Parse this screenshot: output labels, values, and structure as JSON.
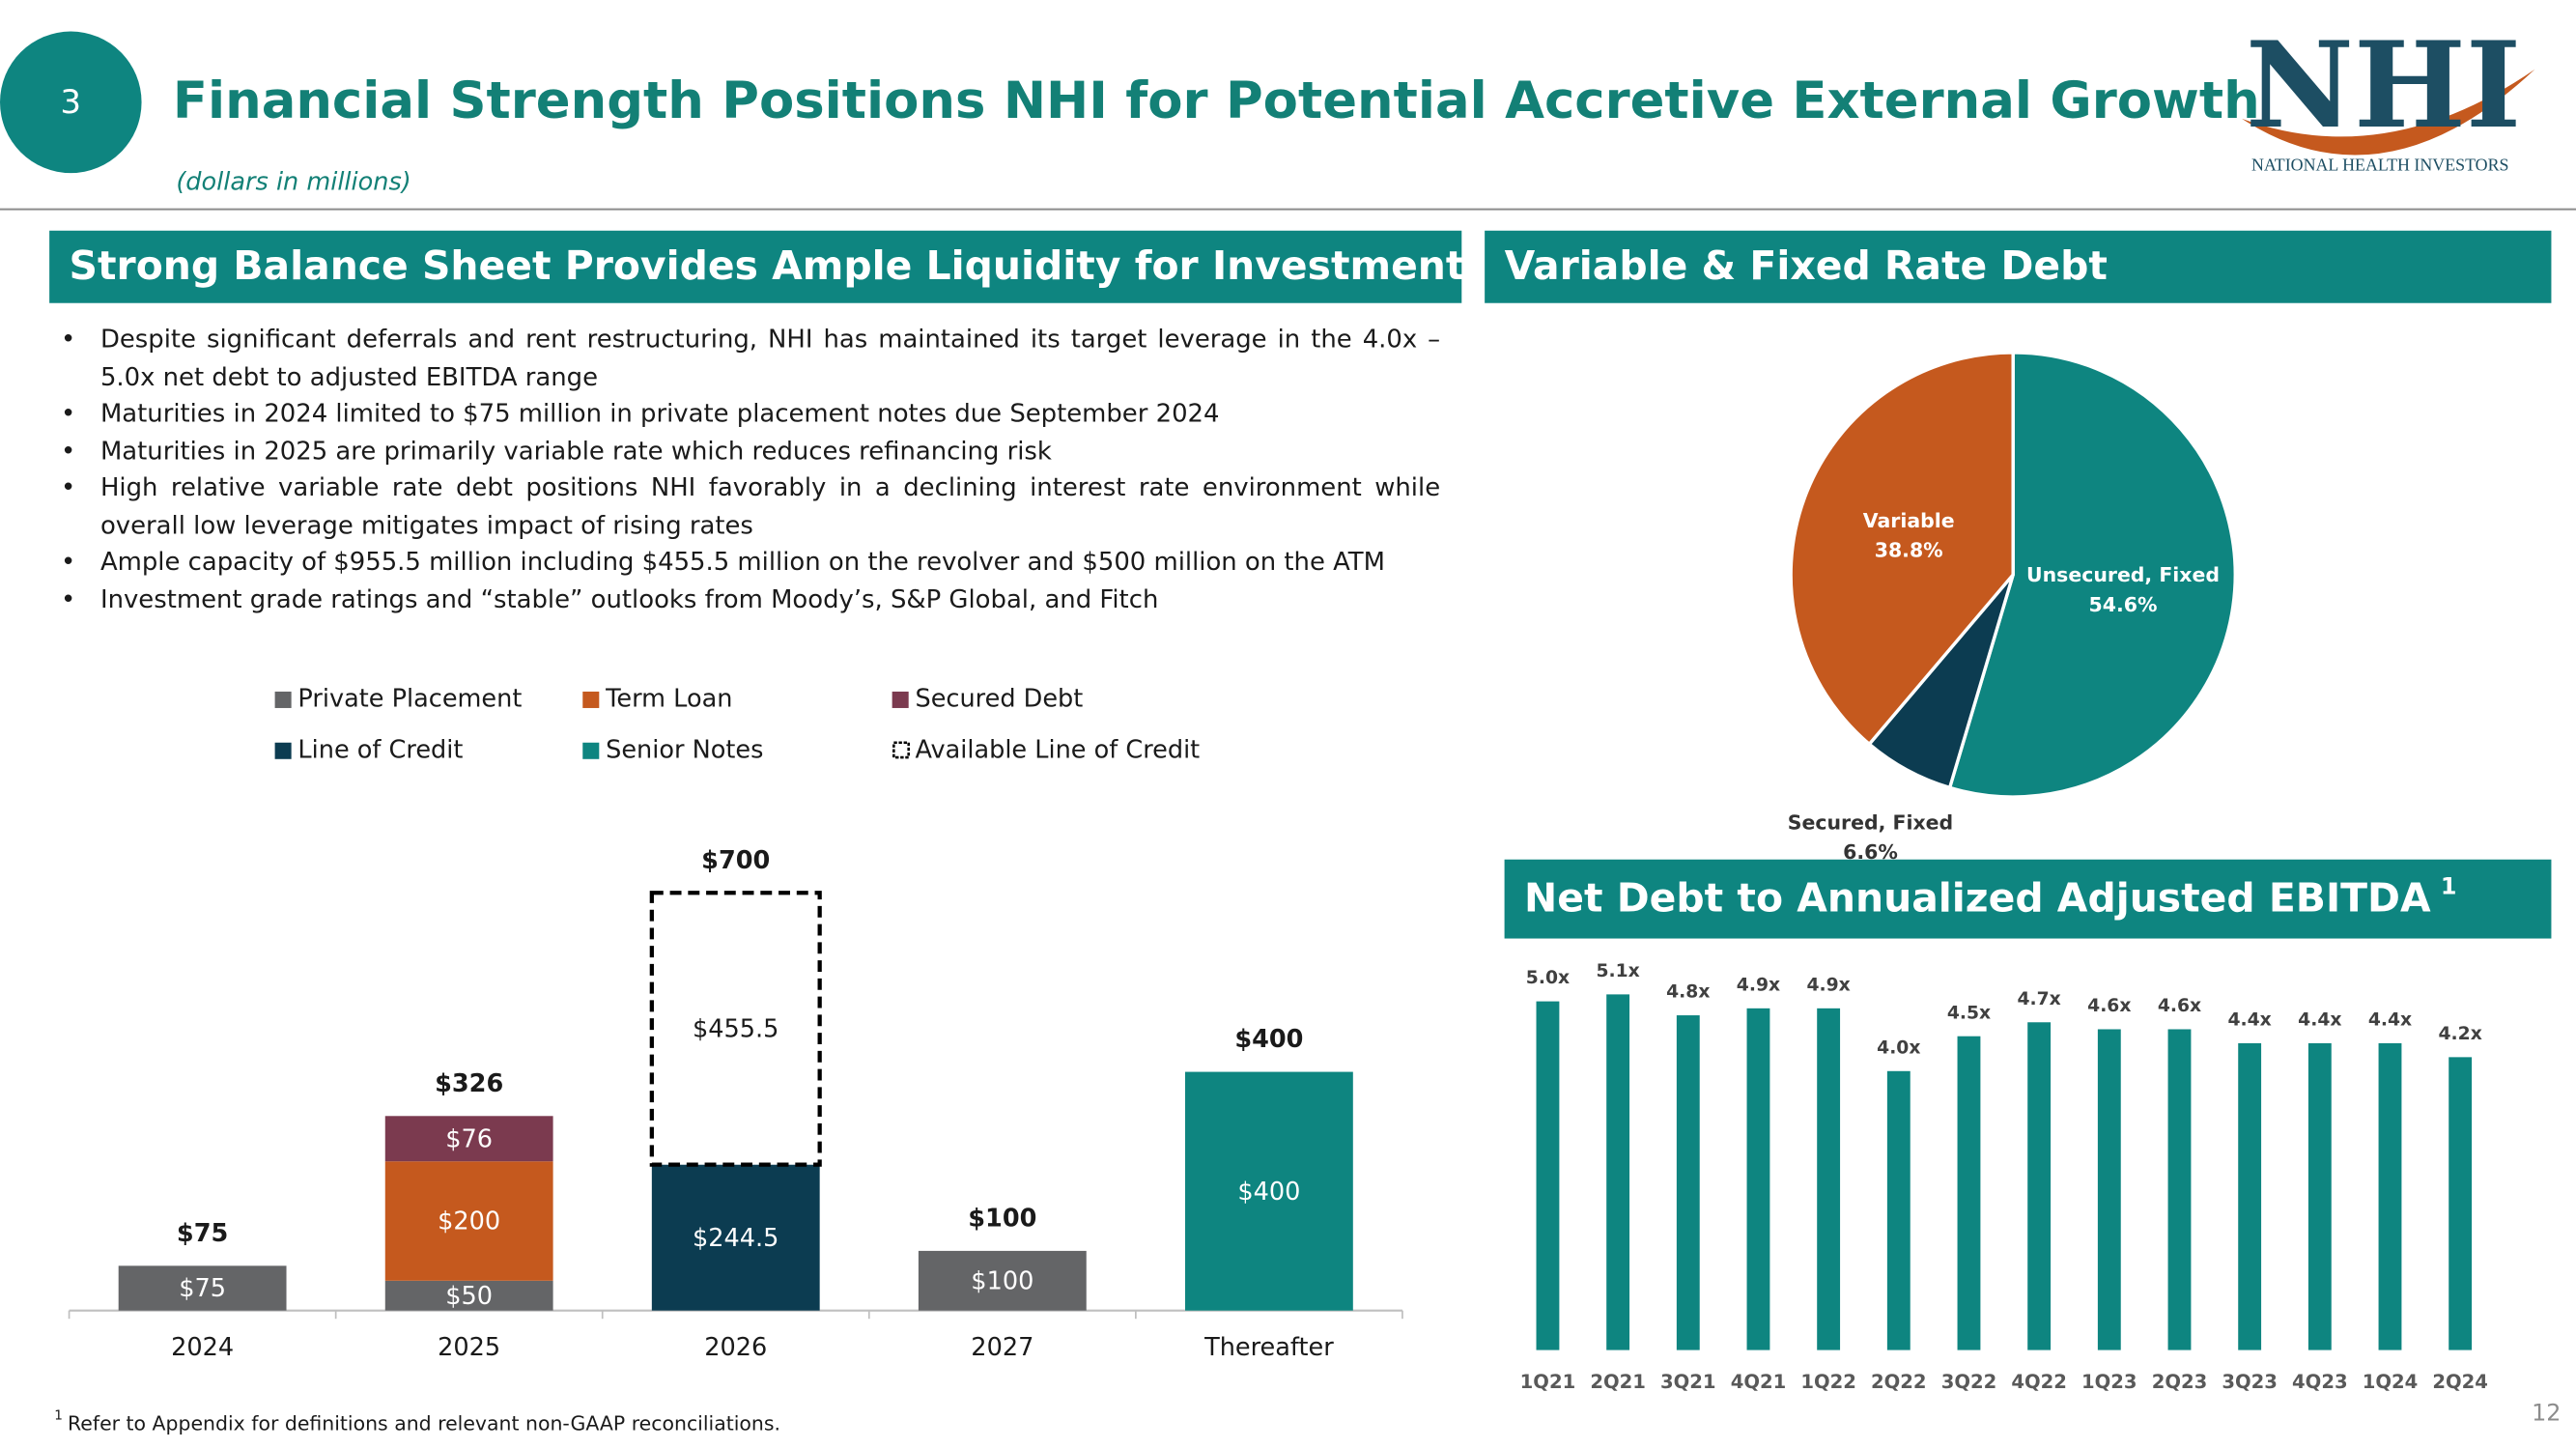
{
  "header": {
    "slide_number": "3",
    "title": "Financial Strength Positions NHI for Potential Accretive External Growth",
    "subtitle": "(dollars in millions)",
    "logo_text": "NHI",
    "logo_caption": "NATIONAL HEALTH INVESTORS"
  },
  "left_panel": {
    "heading": "Strong Balance Sheet Provides Ample Liquidity for Investment",
    "bullets": [
      "Despite significant deferrals and rent restructuring, NHI has maintained its target leverage in the 4.0x – 5.0x net debt to adjusted EBITDA range",
      "Maturities in 2024 limited to $75 million in private placement notes due September 2024",
      "Maturities in 2025 are primarily variable rate which reduces refinancing risk",
      "High relative variable rate debt positions NHI favorably in a declining interest rate environment while overall low leverage mitigates impact of rising rates",
      "Ample capacity of $955.5 million including $455.5 million on the revolver and $500 million on the ATM",
      "Investment grade ratings and “stable” outlooks from Moody’s, S&P Global, and Fitch"
    ]
  },
  "right_panel": {
    "debt_heading": "Variable & Fixed Rate Debt",
    "ebitda_heading": "Net Debt to Annualized Adjusted EBITDA",
    "ebitda_heading_mark": "1"
  },
  "footnote": {
    "mark": "1",
    "text": "Refer to Appendix for definitions and relevant non-GAAP reconciliations."
  },
  "page_number": "12",
  "chart_data": [
    {
      "type": "stacked_bar",
      "categories": [
        "2024",
        "2025",
        "2026",
        "2027",
        "Thereafter"
      ],
      "ylim": [
        0,
        800
      ],
      "series": [
        {
          "name": "Private Placement",
          "color": "#646567",
          "values": [
            75,
            50,
            null,
            100,
            null
          ],
          "value_labels": [
            "$75",
            "$50",
            null,
            "$100",
            null
          ]
        },
        {
          "name": "Term Loan",
          "color": "#c5591e",
          "values": [
            null,
            200,
            null,
            null,
            null
          ],
          "value_labels": [
            null,
            "$200",
            null,
            null,
            null
          ]
        },
        {
          "name": "Secured Debt",
          "color": "#7b3a4f",
          "values": [
            null,
            76,
            null,
            null,
            null
          ],
          "value_labels": [
            null,
            "$76",
            null,
            null,
            null
          ]
        },
        {
          "name": "Line of Credit",
          "color": "#0c3c51",
          "values": [
            null,
            null,
            244.5,
            null,
            null
          ],
          "value_labels": [
            null,
            null,
            "$244.5",
            null,
            null
          ]
        },
        {
          "name": "Senior Notes",
          "color": "#0e8580",
          "values": [
            null,
            null,
            null,
            null,
            400
          ],
          "value_labels": [
            null,
            null,
            null,
            null,
            "$400"
          ]
        },
        {
          "name": "Available Line of Credit",
          "color": "#000000",
          "dashed": true,
          "values": [
            null,
            null,
            455.5,
            null,
            null
          ],
          "value_labels": [
            null,
            null,
            "$455.5",
            null,
            null
          ]
        }
      ],
      "totals": [
        75,
        326,
        700,
        100,
        400
      ],
      "total_labels": [
        "$75",
        "$326",
        "$700",
        "$100",
        "$400"
      ]
    },
    {
      "type": "pie",
      "categories": [
        "Unsecured, Fixed",
        "Secured, Fixed",
        "Variable"
      ],
      "values": [
        54.6,
        6.6,
        38.8
      ],
      "value_labels": [
        "54.6%",
        "6.6%",
        "38.8%"
      ],
      "colors": [
        "#0e8580",
        "#0c3c51",
        "#c5591e"
      ]
    },
    {
      "type": "bar",
      "categories": [
        "1Q21",
        "2Q21",
        "3Q21",
        "4Q21",
        "1Q22",
        "2Q22",
        "3Q22",
        "4Q22",
        "1Q23",
        "2Q23",
        "3Q23",
        "4Q23",
        "1Q24",
        "2Q24"
      ],
      "values": [
        5.0,
        5.1,
        4.8,
        4.9,
        4.9,
        4.0,
        4.5,
        4.7,
        4.6,
        4.6,
        4.4,
        4.4,
        4.4,
        4.2
      ],
      "value_labels": [
        "5.0x",
        "5.1x",
        "4.8x",
        "4.9x",
        "4.9x",
        "4.0x",
        "4.5x",
        "4.7x",
        "4.6x",
        "4.6x",
        "4.4x",
        "4.4x",
        "4.4x",
        "4.2x"
      ],
      "color": "#0e8580",
      "ylim": [
        0,
        5.5
      ]
    }
  ]
}
